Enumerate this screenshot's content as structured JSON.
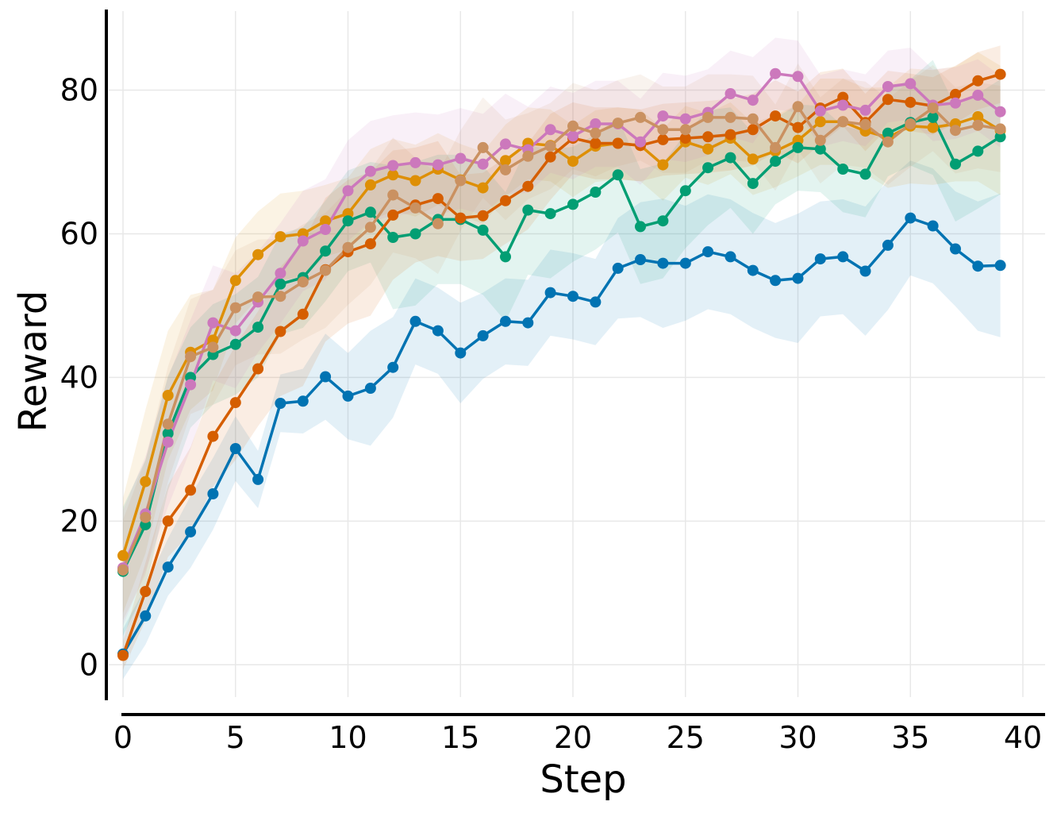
{
  "chart_data": {
    "type": "line",
    "title": "",
    "xlabel": "Step",
    "ylabel": "Reward",
    "xlim": [
      0,
      40
    ],
    "ylim": [
      -4.5,
      91
    ],
    "xticks": [
      0,
      5,
      10,
      15,
      20,
      25,
      30,
      35,
      40
    ],
    "yticks": [
      0,
      20,
      40,
      60,
      80
    ],
    "xtick_labels": [
      "0",
      "5",
      "10",
      "15",
      "20",
      "25",
      "30",
      "35",
      "40"
    ],
    "ytick_labels": [
      "0",
      "20",
      "40",
      "60",
      "80"
    ],
    "grid": true,
    "legend": "none",
    "x": [
      0,
      1,
      2,
      3,
      4,
      5,
      6,
      7,
      8,
      9,
      10,
      11,
      12,
      13,
      14,
      15,
      16,
      17,
      18,
      19,
      20,
      21,
      22,
      23,
      24,
      25,
      26,
      27,
      28,
      29,
      30,
      31,
      32,
      33,
      34,
      35,
      36,
      37,
      38,
      39
    ],
    "series": [
      {
        "name": "blue",
        "color": "#0173b2",
        "values": [
          1.5,
          6.8,
          13.6,
          18.5,
          23.8,
          30.1,
          25.8,
          36.4,
          36.7,
          40.1,
          37.4,
          38.5,
          41.4,
          47.8,
          46.5,
          43.4,
          45.8,
          47.8,
          47.6,
          51.8,
          51.3,
          50.5,
          55.2,
          56.4,
          55.9,
          55.9,
          57.5,
          56.8,
          54.9,
          53.5,
          53.8,
          56.5,
          56.8,
          54.8,
          58.4,
          62.2,
          61.1,
          57.9,
          55.5,
          55.6
        ],
        "band": [
          3.5,
          4,
          4,
          5,
          5,
          4.5,
          4,
          4,
          4.5,
          6,
          6,
          8,
          7,
          6,
          6,
          7,
          6,
          6,
          6,
          6,
          6,
          6,
          7,
          8,
          9,
          8,
          8,
          8,
          8,
          8,
          9,
          8,
          8,
          9,
          9,
          8,
          8,
          8,
          9,
          10
        ]
      },
      {
        "name": "orange",
        "color": "#de8f05",
        "values": [
          15.2,
          25.5,
          37.5,
          43.5,
          45.2,
          53.5,
          57.1,
          59.6,
          60.0,
          61.8,
          62.8,
          66.8,
          68.2,
          67.4,
          69.0,
          67.5,
          66.4,
          70.2,
          72.6,
          72.3,
          70.1,
          72.2,
          72.6,
          72.3,
          69.6,
          72.8,
          71.8,
          73.3,
          70.4,
          71.5,
          73.0,
          75.6,
          75.6,
          74.3,
          73.4,
          75.0,
          74.8,
          75.3,
          76.3,
          74.4
        ],
        "band": [
          8,
          10,
          9,
          8,
          7,
          6,
          6,
          6,
          6,
          5,
          5,
          5,
          5,
          5,
          5,
          5,
          5,
          5,
          5,
          5,
          5,
          5,
          5,
          5,
          5,
          5,
          5,
          5,
          5,
          5,
          5,
          6,
          6,
          6,
          7,
          8,
          8,
          8,
          9,
          9
        ]
      },
      {
        "name": "green",
        "color": "#029e73",
        "values": [
          13.0,
          19.5,
          32.2,
          40.0,
          43.2,
          44.6,
          47.0,
          53.0,
          53.9,
          57.6,
          61.8,
          63.0,
          59.5,
          60.0,
          62.0,
          62.0,
          60.5,
          56.8,
          63.3,
          62.8,
          64.1,
          65.8,
          68.2,
          61.0,
          61.8,
          66.0,
          69.2,
          70.6,
          67.0,
          70.1,
          72.0,
          71.8,
          69.0,
          68.3,
          74.0,
          75.5,
          76.2,
          69.7,
          71.5,
          73.5
        ],
        "band": [
          9,
          9,
          8,
          7,
          7,
          7,
          7,
          7,
          7,
          7,
          7,
          7,
          10,
          10,
          9,
          9,
          9,
          9,
          9,
          9,
          8,
          8,
          8,
          8,
          8,
          8,
          8,
          7,
          7,
          6,
          6,
          6,
          6,
          6,
          6,
          6,
          8,
          8,
          8,
          8
        ]
      },
      {
        "name": "red",
        "color": "#d55e00",
        "values": [
          1.3,
          10.2,
          20.0,
          24.3,
          31.8,
          36.5,
          41.2,
          46.4,
          48.8,
          55.0,
          57.5,
          58.6,
          62.6,
          64.0,
          64.9,
          62.2,
          62.5,
          64.6,
          66.6,
          70.7,
          73.3,
          72.6,
          72.6,
          72.3,
          73.1,
          73.3,
          73.5,
          73.8,
          74.5,
          76.4,
          74.8,
          77.5,
          79.0,
          75.5,
          78.7,
          78.3,
          77.8,
          79.4,
          81.3,
          82.2
        ],
        "band": [
          2,
          4,
          5,
          6,
          7,
          8,
          8,
          9,
          10,
          10,
          10,
          10,
          9,
          8,
          8,
          6,
          6,
          6,
          6,
          6,
          5,
          5,
          5,
          5,
          5,
          5,
          5,
          5,
          5,
          5,
          5,
          5,
          4,
          4,
          4,
          4,
          4,
          4,
          4,
          4
        ]
      },
      {
        "name": "pink",
        "color": "#cc78bc",
        "values": [
          13.5,
          21.0,
          31.0,
          39.0,
          47.6,
          46.5,
          50.5,
          54.5,
          59.0,
          60.6,
          66.0,
          68.7,
          69.5,
          69.9,
          69.6,
          70.5,
          69.7,
          72.5,
          71.7,
          74.5,
          73.6,
          75.3,
          75.3,
          72.8,
          76.4,
          76.0,
          76.9,
          79.5,
          78.6,
          82.3,
          81.9,
          77.1,
          77.9,
          77.2,
          80.5,
          80.9,
          77.9,
          78.2,
          79.3,
          77.0
        ],
        "band": [
          8,
          8,
          9,
          9,
          8,
          8,
          7,
          7,
          7,
          7,
          7,
          7,
          7,
          7,
          7,
          7,
          7,
          7,
          6,
          6,
          6,
          6,
          6,
          6,
          6,
          6,
          6,
          6,
          6,
          5,
          5,
          5,
          5,
          5,
          5,
          5,
          5,
          5,
          5,
          5
        ]
      },
      {
        "name": "brown",
        "color": "#ca9161",
        "values": [
          13.2,
          20.5,
          33.5,
          42.9,
          44.2,
          49.7,
          51.2,
          51.3,
          53.3,
          54.9,
          58.1,
          60.9,
          65.4,
          63.6,
          61.4,
          67.4,
          72.0,
          68.9,
          70.8,
          72.2,
          75.0,
          74.0,
          75.4,
          76.2,
          74.5,
          74.5,
          76.2,
          76.2,
          76.0,
          72.0,
          77.7,
          73.0,
          75.6,
          75.2,
          72.8,
          75.3,
          77.5,
          74.4,
          75.1,
          74.6
        ],
        "band": [
          7,
          8,
          8,
          8,
          8,
          8,
          8,
          8,
          8,
          8,
          8,
          8,
          8,
          7,
          7,
          7,
          7,
          7,
          6,
          6,
          6,
          6,
          6,
          6,
          6,
          6,
          6,
          6,
          6,
          6,
          6,
          6,
          6,
          6,
          6,
          6,
          6,
          6,
          6,
          6
        ]
      }
    ]
  }
}
